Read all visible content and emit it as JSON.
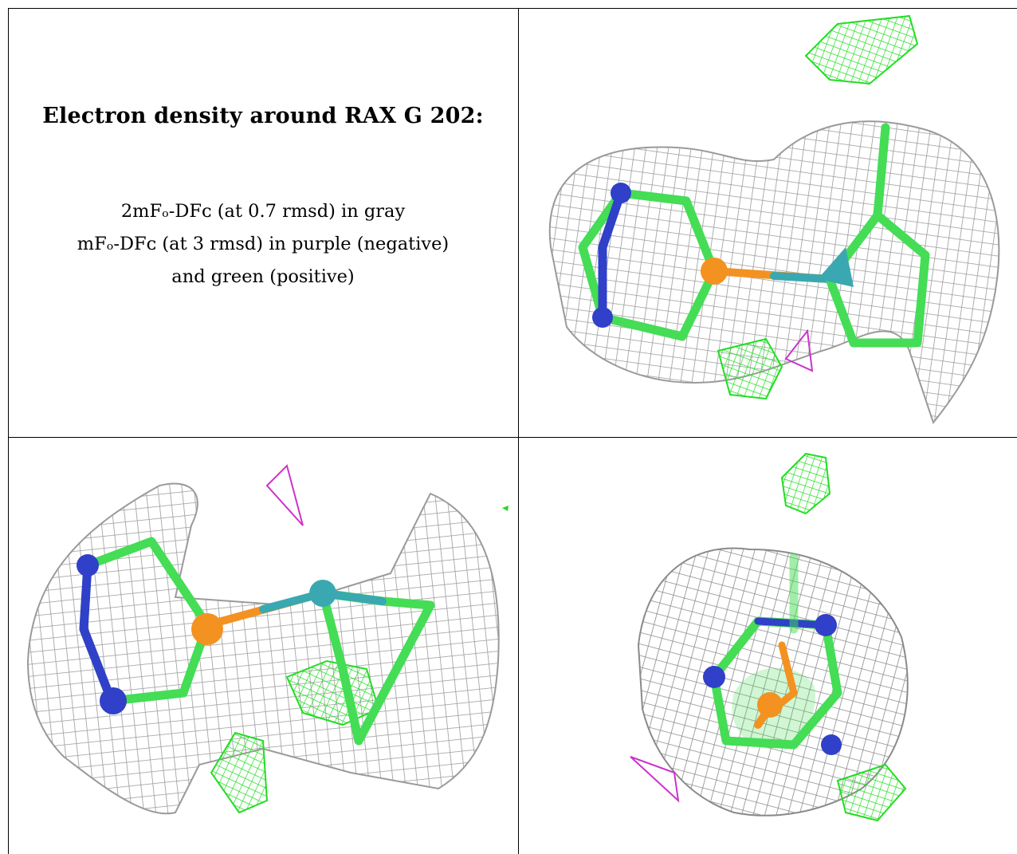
{
  "caption": {
    "title": "Electron density around RAX G 202:",
    "line1": "2mFₒ-DFᴄ (at 0.7 rmsd) in gray",
    "line2": "mFₒ-DFᴄ (at 3 rmsd) in purple (negative)",
    "line3": "and green (positive)"
  },
  "colors": {
    "mesh_2fofc": "#9a9a9a",
    "mesh_positive": "#22dd22",
    "mesh_negative": "#cc33cc",
    "carbon": "#44dd55",
    "nitrogen": "#3040c8",
    "phosphorus": "#f39220",
    "metal": "#3aa8b0"
  },
  "panels": [
    {
      "view": "top-right"
    },
    {
      "view": "bottom-left"
    },
    {
      "view": "bottom-right"
    }
  ]
}
